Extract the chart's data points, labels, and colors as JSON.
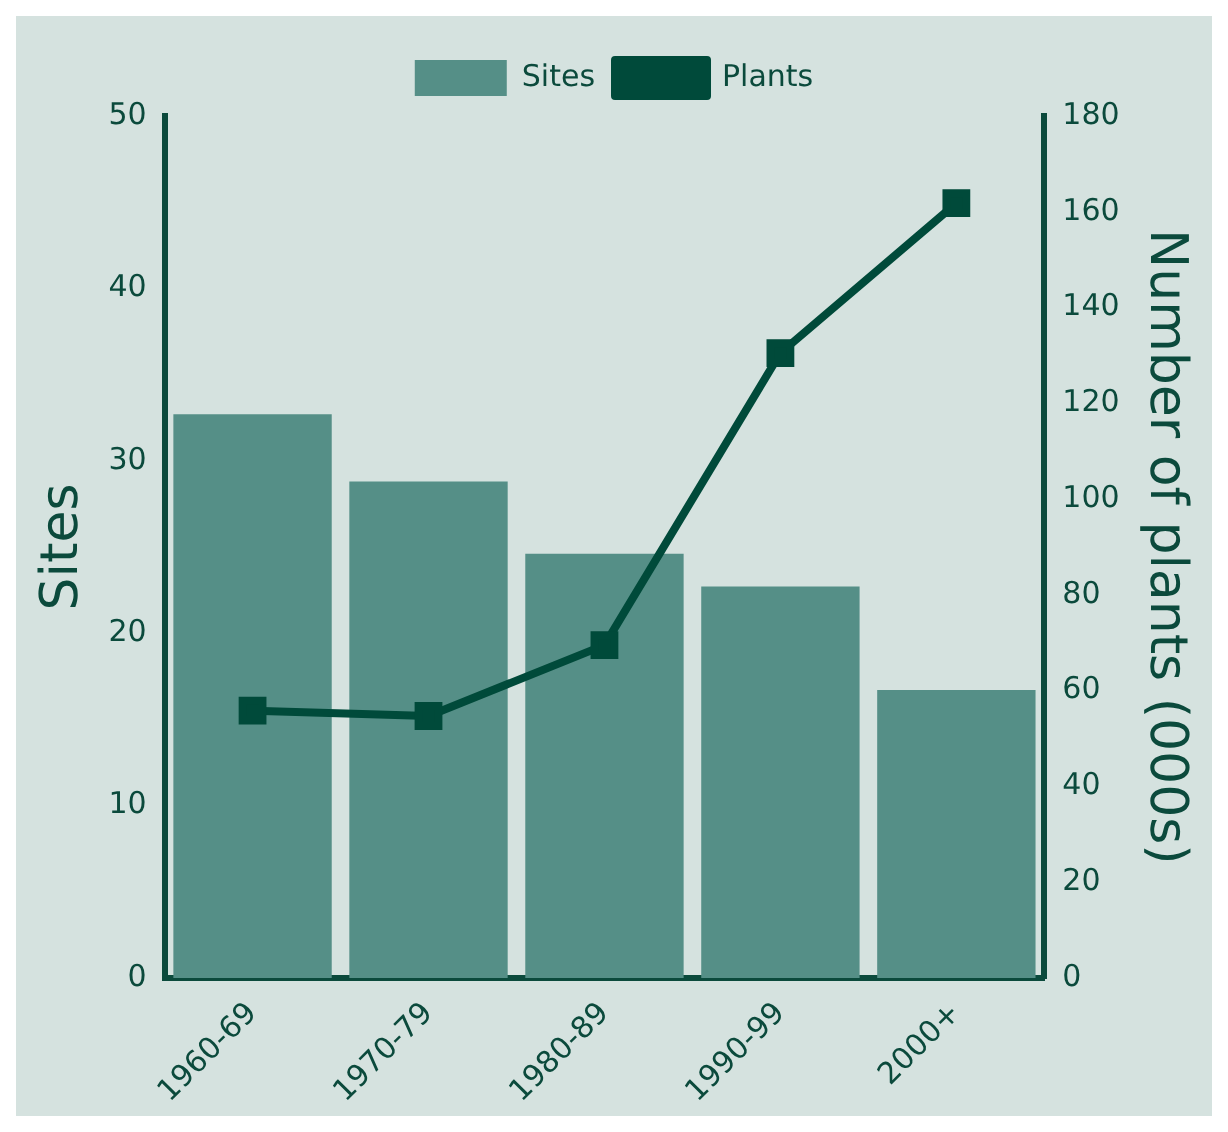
{
  "chart_data": {
    "type": "bar",
    "categories": [
      "1960-69",
      "1970-79",
      "1980-89",
      "1990-99",
      "2000+"
    ],
    "series": [
      {
        "name": "Sites",
        "color": "#558f87",
        "values": [
          32.7,
          28.8,
          24.6,
          22.7,
          16.7
        ]
      },
      {
        "name": "Plants",
        "type": "line",
        "axis": "y2",
        "color": "#004a3a",
        "marker": "square",
        "values": [
          55.8,
          54.7,
          69.5,
          130.5,
          161.8
        ]
      }
    ],
    "ylabel": "Sites",
    "y2label": "Number of plants (000s)",
    "ylim": [
      0,
      50
    ],
    "yticks": [
      0,
      10,
      20,
      30,
      40,
      50
    ],
    "y2lim": [
      0,
      180
    ],
    "y2ticks": [
      0,
      20,
      40,
      60,
      80,
      100,
      120,
      140,
      160,
      180
    ],
    "grid": false,
    "legend": "top"
  }
}
